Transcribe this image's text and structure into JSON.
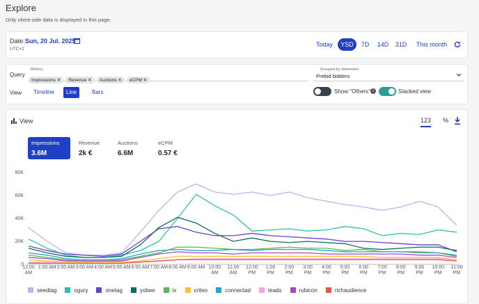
{
  "header": {
    "title": "Explore",
    "subtitle": "Only client-side data is displayed in this page."
  },
  "date": {
    "label": "Date:",
    "value": "Sun, 20 Jul. 2025",
    "timezone": "UTC+2",
    "presets": [
      "Today",
      "YSD",
      "7D",
      "14D",
      "31D",
      "This month"
    ],
    "active_preset": 1
  },
  "query": {
    "label": "Query",
    "metrics_label": "Metrics",
    "metrics": [
      "Impressions",
      "Revenue",
      "Auctions",
      "eCPM"
    ],
    "dimension_label": "Grouped by dimension",
    "dimension": "Prebid bidders"
  },
  "view": {
    "label": "View",
    "modes": [
      "Timeline",
      "Line",
      "Bars"
    ],
    "active_mode": 1,
    "show_others": "Show \"Others\"",
    "stacked": "Stacked view"
  },
  "panel": {
    "title": "View",
    "formats": [
      "123",
      "%"
    ],
    "active_format": 0
  },
  "kpis": [
    {
      "label": "Impressions",
      "value": "3.6M"
    },
    {
      "label": "Revenue",
      "value": "2k €"
    },
    {
      "label": "Auctions",
      "value": "6.6M"
    },
    {
      "label": "eCPM",
      "value": "0.57 €"
    }
  ],
  "active_kpi": 0,
  "chart_data": {
    "type": "line",
    "grid": false,
    "categories": [
      "12:00 AM",
      "1:00 AM",
      "2:00 AM",
      "3:00 AM",
      "4:00 AM",
      "5:00 AM",
      "6:00 AM",
      "7:00 AM",
      "8:00 AM",
      "9:00 AM",
      "10:00 AM",
      "11:00 AM",
      "12:00 PM",
      "1:00 PM",
      "2:00 PM",
      "3:00 PM",
      "4:00 PM",
      "5:00 PM",
      "6:00 PM",
      "7:00 PM",
      "8:00 PM",
      "9:00 PM",
      "10:00 PM",
      "11:00 PM"
    ],
    "ylim": [
      0,
      80000
    ],
    "yticks": [
      0,
      {
        "value": 20000,
        "label": "20K"
      },
      {
        "value": 40000,
        "label": "40K"
      },
      {
        "value": 60000,
        "label": "60K"
      },
      {
        "value": 80000,
        "label": "80K"
      }
    ],
    "series": [
      {
        "name": "seedtag",
        "color": "#b6b6f0",
        "values": [
          32000,
          20000,
          10000,
          8000,
          8000,
          10000,
          28000,
          47000,
          63000,
          70000,
          63000,
          61000,
          63000,
          60000,
          63000,
          58000,
          55000,
          52000,
          50000,
          47000,
          50000,
          55000,
          50000,
          34000
        ]
      },
      {
        "name": "ogury",
        "color": "#2dbfae",
        "values": [
          22000,
          14000,
          8000,
          6000,
          6000,
          8000,
          12000,
          20000,
          40000,
          61000,
          51000,
          43000,
          29000,
          30000,
          31000,
          29000,
          30000,
          33000,
          31000,
          25000,
          27000,
          26000,
          30000,
          28000
        ]
      },
      {
        "name": "onetag",
        "color": "#6a3fd0",
        "values": [
          16000,
          12000,
          9000,
          8000,
          7000,
          9000,
          20000,
          31000,
          33000,
          28000,
          25000,
          25000,
          27000,
          25000,
          24000,
          23000,
          22000,
          20000,
          20000,
          19000,
          18000,
          17000,
          17000,
          11000
        ]
      },
      {
        "name": "yobee",
        "color": "#0d6b60",
        "values": [
          14000,
          10000,
          7000,
          6000,
          6000,
          7000,
          17000,
          32000,
          41000,
          36000,
          27000,
          20000,
          23000,
          20000,
          19000,
          20000,
          19000,
          18000,
          14000,
          13000,
          14000,
          15000,
          15000,
          12000
        ]
      },
      {
        "name": "ix",
        "color": "#58b84f",
        "values": [
          8000,
          6000,
          4000,
          3000,
          3000,
          4000,
          7000,
          10000,
          15000,
          15000,
          14000,
          13000,
          13000,
          14000,
          15000,
          14000,
          14000,
          12000,
          13000,
          11000,
          11000,
          10000,
          10000,
          7000
        ]
      },
      {
        "name": "criteo",
        "color": "#f5c23a",
        "values": [
          4000,
          3000,
          2000,
          2000,
          2000,
          2000,
          3000,
          5000,
          7000,
          7000,
          7000,
          7000,
          7000,
          7000,
          7000,
          7000,
          7000,
          7000,
          7000,
          6000,
          6000,
          6000,
          6000,
          4000
        ]
      },
      {
        "name": "connectad",
        "color": "#2aa4c6",
        "values": [
          10000,
          8000,
          5000,
          4000,
          4000,
          5000,
          9000,
          12000,
          13000,
          12000,
          12000,
          13000,
          12000,
          13000,
          13000,
          13000,
          12000,
          11000,
          11000,
          11000,
          11000,
          11000,
          10000,
          8000
        ]
      },
      {
        "name": "teads",
        "color": "#f5a3e0",
        "values": [
          2000,
          2000,
          1000,
          1000,
          1000,
          1000,
          2000,
          3000,
          4000,
          5000,
          5000,
          5000,
          5000,
          5000,
          5000,
          5000,
          5000,
          5000,
          5000,
          5000,
          5000,
          5000,
          5000,
          4000
        ]
      },
      {
        "name": "rubicon",
        "color": "#a347c9",
        "values": [
          6000,
          5000,
          3000,
          3000,
          3000,
          3000,
          6000,
          9000,
          11000,
          10000,
          10000,
          9000,
          10000,
          10000,
          10000,
          10000,
          9000,
          9000,
          9000,
          9000,
          9000,
          8000,
          8000,
          6000
        ]
      },
      {
        "name": "richaudience",
        "color": "#e8524f",
        "values": [
          1000,
          1000,
          1000,
          1000,
          1000,
          1000,
          2000,
          3000,
          4000,
          4000,
          4000,
          4000,
          4000,
          4000,
          4000,
          4000,
          4000,
          4000,
          4000,
          4000,
          4000,
          4000,
          4000,
          3000
        ]
      }
    ]
  }
}
